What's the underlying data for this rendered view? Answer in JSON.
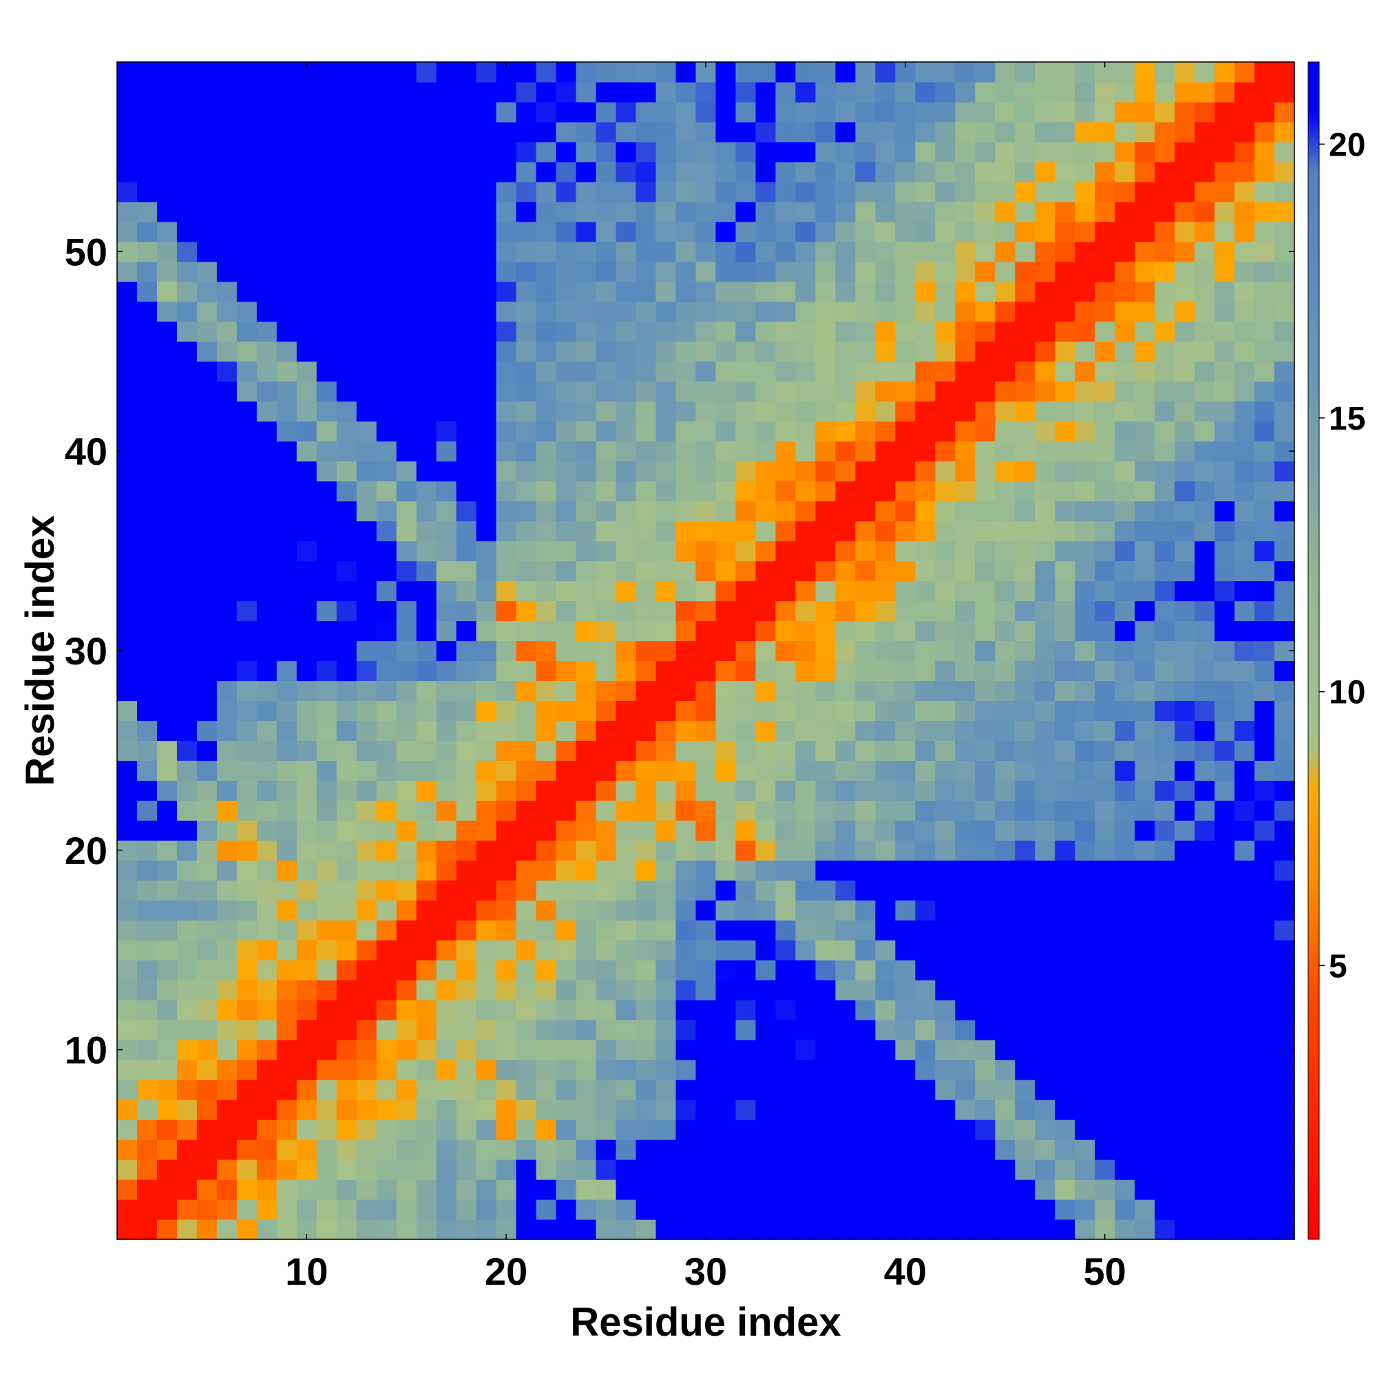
{
  "chart_data": {
    "type": "heatmap",
    "title": "",
    "xlabel": "Residue index",
    "ylabel": "Residue index",
    "n_residues": 59,
    "x_range": [
      0.5,
      59.5
    ],
    "y_range": [
      0.5,
      59.5
    ],
    "x_ticks": [
      10,
      20,
      30,
      40,
      50
    ],
    "y_ticks": [
      10,
      20,
      30,
      40,
      50
    ],
    "colorbar": {
      "range": [
        0,
        21.5
      ],
      "ticks": [
        5,
        10,
        15,
        20
      ],
      "color_stops": [
        {
          "value": 0,
          "color": "#ff0000"
        },
        {
          "value": 4.5,
          "color": "#ff4a00"
        },
        {
          "value": 6.5,
          "color": "#ff8c00"
        },
        {
          "value": 8.2,
          "color": "#ffa800"
        },
        {
          "value": 9.0,
          "color": "#a7c189"
        },
        {
          "value": 12.0,
          "color": "#94b895"
        },
        {
          "value": 15.5,
          "color": "#6c98b6"
        },
        {
          "value": 19.5,
          "color": "#5182c0"
        },
        {
          "value": 20.6,
          "color": "#0000ff"
        },
        {
          "value": 21.5,
          "color": "#0000ff"
        }
      ]
    },
    "colors": {
      "diagonal": "#ff0000",
      "near_contact": "#ff8c00",
      "contact": "#ffa800",
      "medium": "#a7c189",
      "far": "#5182c0",
      "very_far": "#0000ff"
    },
    "distance_matrix_description": "Symmetric residue-residue distance map (Angstrom); values near 0 on the main diagonal, increasing with sequence separation and saturating above 20.",
    "grid": false
  }
}
